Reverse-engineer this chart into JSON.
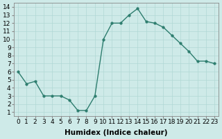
{
  "x": [
    0,
    1,
    2,
    3,
    4,
    5,
    6,
    7,
    8,
    9,
    10,
    11,
    12,
    13,
    14,
    15,
    16,
    17,
    18,
    19,
    20,
    21,
    22,
    23
  ],
  "y": [
    6.0,
    4.5,
    4.8,
    3.0,
    3.0,
    3.0,
    2.5,
    1.2,
    1.2,
    3.0,
    10.0,
    12.0,
    12.0,
    13.0,
    13.8,
    12.2,
    12.0,
    11.5,
    10.5,
    9.5,
    8.5,
    7.3,
    7.3,
    7.0
  ],
  "line_color": "#2d7d6e",
  "marker": "o",
  "marker_size": 2.5,
  "bg_color": "#ceeae8",
  "grid_color": "#b0d8d4",
  "xlabel": "Humidex (Indice chaleur)",
  "xlim": [
    -0.5,
    23.5
  ],
  "ylim": [
    0.5,
    14.5
  ],
  "yticks": [
    1,
    2,
    3,
    4,
    5,
    6,
    7,
    8,
    9,
    10,
    11,
    12,
    13,
    14
  ],
  "xticks": [
    0,
    1,
    2,
    3,
    4,
    5,
    6,
    7,
    8,
    9,
    10,
    11,
    12,
    13,
    14,
    15,
    16,
    17,
    18,
    19,
    20,
    21,
    22,
    23
  ],
  "xtick_labels": [
    "0",
    "1",
    "2",
    "3",
    "4",
    "5",
    "6",
    "7",
    "8",
    "9",
    "10",
    "11",
    "12",
    "13",
    "14",
    "15",
    "16",
    "17",
    "18",
    "19",
    "20",
    "21",
    "22",
    "23"
  ],
  "xlabel_fontsize": 7.5,
  "tick_fontsize": 6.5,
  "line_width": 1.0,
  "spine_color": "#888888"
}
